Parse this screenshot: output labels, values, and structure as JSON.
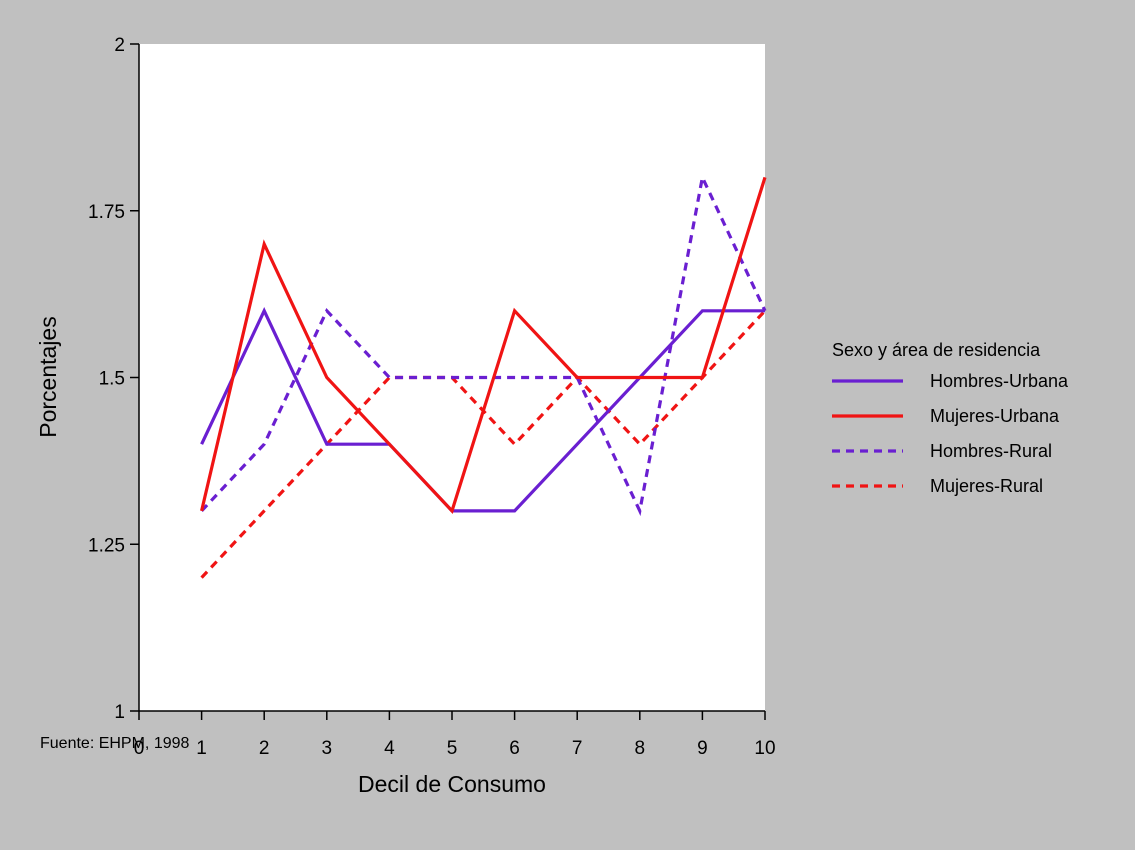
{
  "chart_data": {
    "type": "line",
    "xlabel": "Decil de Consumo",
    "ylabel": "Porcentajes",
    "xlim": [
      0,
      10
    ],
    "ylim": [
      1,
      2
    ],
    "xticks": [
      0,
      1,
      2,
      3,
      4,
      5,
      6,
      7,
      8,
      9,
      10
    ],
    "yticks": [
      1,
      1.25,
      1.5,
      1.75,
      2
    ],
    "ytick_labels": [
      "1",
      "1.25",
      "1.5",
      "1.75",
      "2"
    ],
    "grid": false,
    "legend_title": "Sexo y área de residencia",
    "legend_position": "right",
    "x": [
      1,
      2,
      3,
      4,
      5,
      6,
      7,
      8,
      9,
      10
    ],
    "series": [
      {
        "name": "Hombres-Urbana",
        "color": "#6a1fd1",
        "dashed": false,
        "values": [
          1.4,
          1.6,
          1.4,
          1.4,
          1.3,
          1.3,
          1.4,
          1.5,
          1.6,
          1.6
        ]
      },
      {
        "name": "Mujeres-Urbana",
        "color": "#f01414",
        "dashed": false,
        "values": [
          1.3,
          1.7,
          1.5,
          1.4,
          1.3,
          1.6,
          1.5,
          1.5,
          1.5,
          1.8
        ]
      },
      {
        "name": "Hombres-Rural",
        "color": "#6a1fd1",
        "dashed": true,
        "values": [
          1.3,
          1.4,
          1.6,
          1.5,
          1.5,
          1.5,
          1.5,
          1.3,
          1.8,
          1.6
        ]
      },
      {
        "name": "Mujeres-Rural",
        "color": "#f01414",
        "dashed": true,
        "values": [
          1.2,
          1.3,
          1.4,
          1.5,
          1.5,
          1.4,
          1.5,
          1.4,
          1.5,
          1.6
        ]
      }
    ]
  },
  "source_note": "Fuente: EHPM, 1998"
}
